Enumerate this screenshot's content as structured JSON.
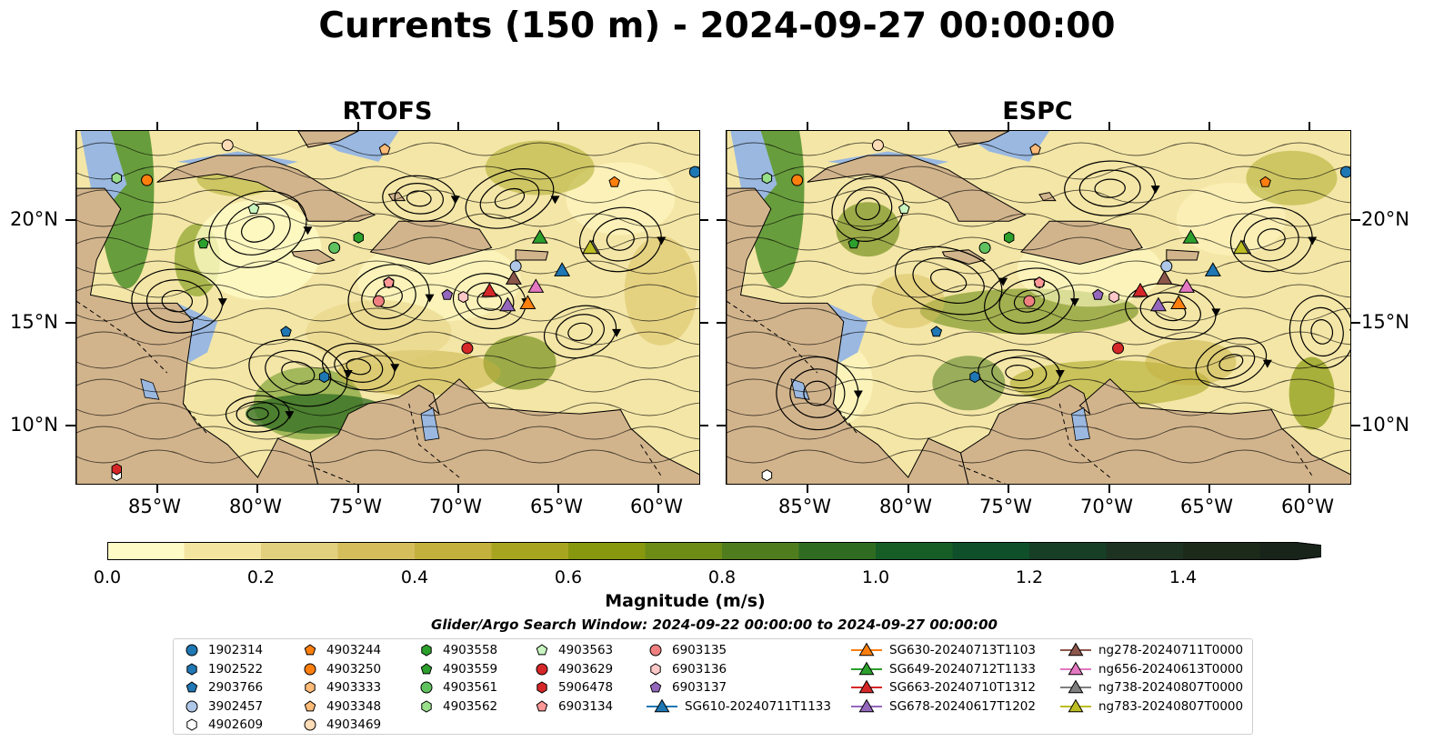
{
  "title": "Currents (150 m) - 2024-09-27 00:00:00",
  "panels": [
    {
      "title": "RTOFS"
    },
    {
      "title": "ESPC"
    }
  ],
  "lon_ticks": [
    "85°W",
    "80°W",
    "75°W",
    "70°W",
    "65°W",
    "60°W"
  ],
  "lat_ticks": [
    "20°N",
    "15°N",
    "10°N"
  ],
  "colorbar": {
    "label": "Magnitude (m/s)",
    "ticks": [
      "0.0",
      "0.2",
      "0.4",
      "0.6",
      "0.8",
      "1.0",
      "1.2",
      "1.4"
    ],
    "colors": [
      "#fffbc7",
      "#f3e5a0",
      "#e3d07f",
      "#d5bd5c",
      "#c4b03d",
      "#a7a51f",
      "#87980f",
      "#6d8c16",
      "#4f7d1e",
      "#2f6c22",
      "#175e26",
      "#0f4f2a",
      "#173f26",
      "#1d3220",
      "#1c2a19",
      "#18241a"
    ]
  },
  "search_window": "Glider/Argo Search Window: 2024-09-22 00:00:00 to 2024-09-27 00:00:00",
  "colors": {
    "land": "#d2b48c",
    "water_shallow": "#9ab8e0",
    "stream": "#000000"
  },
  "legend": [
    {
      "label": "1902314",
      "color": "#1f77b4",
      "shape": "circle"
    },
    {
      "label": "1902522",
      "color": "#1f77b4",
      "shape": "hexagon"
    },
    {
      "label": "2903766",
      "color": "#1f77b4",
      "shape": "pentagon"
    },
    {
      "label": "3902457",
      "color": "#aec7e8",
      "shape": "circle"
    },
    {
      "label": "4902609",
      "color": "#ffffff",
      "shape": "hexagon"
    },
    {
      "label": "4903244",
      "color": "#ff7f0e",
      "shape": "pentagon"
    },
    {
      "label": "4903250",
      "color": "#ff7f0e",
      "shape": "circle"
    },
    {
      "label": "4903333",
      "color": "#ffbb78",
      "shape": "hexagon"
    },
    {
      "label": "4903348",
      "color": "#ffbb78",
      "shape": "pentagon"
    },
    {
      "label": "4903469",
      "color": "#ffdcb8",
      "shape": "circle"
    },
    {
      "label": "4903558",
      "color": "#2ca02c",
      "shape": "hexagon"
    },
    {
      "label": "4903559",
      "color": "#2ca02c",
      "shape": "pentagon"
    },
    {
      "label": "4903561",
      "color": "#5fc25f",
      "shape": "circle"
    },
    {
      "label": "4903562",
      "color": "#98df8a",
      "shape": "hexagon"
    },
    {
      "label": "4903563",
      "color": "#c8f5c0",
      "shape": "pentagon"
    },
    {
      "label": "4903629",
      "color": "#d62728",
      "shape": "circle"
    },
    {
      "label": "5906478",
      "color": "#d62728",
      "shape": "hexagon"
    },
    {
      "label": "6903134",
      "color": "#ff9896",
      "shape": "pentagon"
    },
    {
      "label": "6903135",
      "color": "#f08080",
      "shape": "circle"
    },
    {
      "label": "6903136",
      "color": "#ffc8c8",
      "shape": "hexagon"
    },
    {
      "label": "6903137",
      "color": "#9467bd",
      "shape": "pentagon"
    },
    {
      "label": "SG610-20240711T1133",
      "color": "#1f77b4",
      "shape": "triangle"
    },
    {
      "label": "SG630-20240713T1103",
      "color": "#ff7f0e",
      "shape": "triangle"
    },
    {
      "label": "SG649-20240712T1133",
      "color": "#2ca02c",
      "shape": "triangle"
    },
    {
      "label": "SG663-20240710T1312",
      "color": "#d62728",
      "shape": "triangle"
    },
    {
      "label": "SG678-20240617T1202",
      "color": "#9467bd",
      "shape": "triangle"
    },
    {
      "label": "ng278-20240711T0000",
      "color": "#8c564b",
      "shape": "triangle"
    },
    {
      "label": "ng656-20240613T0000",
      "color": "#e377c2",
      "shape": "triangle"
    },
    {
      "label": "ng738-20240807T0000",
      "color": "#7f7f7f",
      "shape": "triangle"
    },
    {
      "label": "ng783-20240807T0000",
      "color": "#bcbd22",
      "shape": "triangle"
    }
  ]
}
